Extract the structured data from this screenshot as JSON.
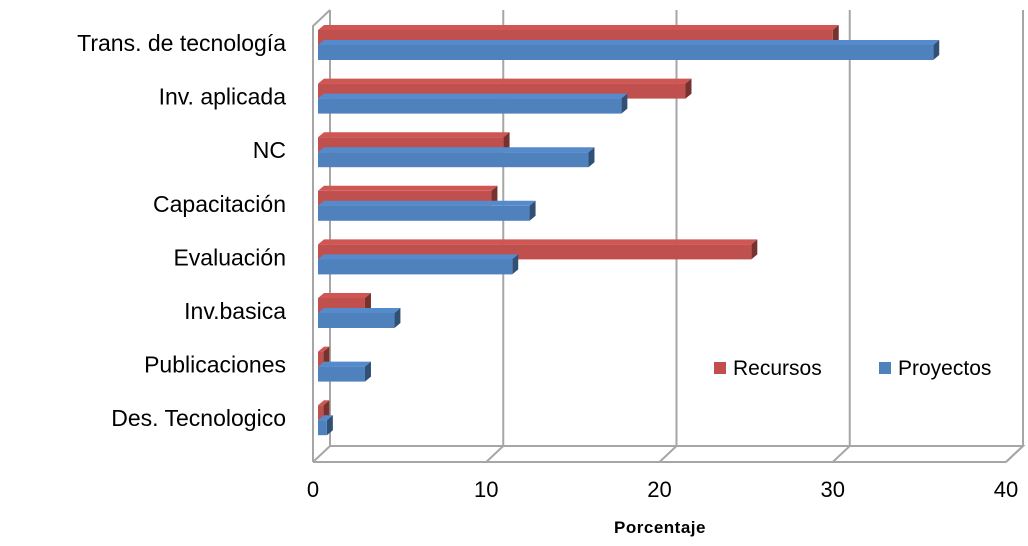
{
  "chart_data": {
    "type": "bar",
    "orientation": "horizontal",
    "style": "3d-clustered",
    "categories": [
      "Trans. de tecnología",
      "Inv. aplicada",
      "NC",
      "Capacitación",
      "Evaluación",
      "Inv.basica",
      "Publicaciones",
      "Des. Tecnologico"
    ],
    "series": [
      {
        "name": "Recursos",
        "color": "#C0504D",
        "values": [
          30,
          21.5,
          11,
          10.3,
          25.3,
          3,
          0.6,
          0.6
        ]
      },
      {
        "name": "Proyectos",
        "color": "#4F81BD",
        "values": [
          35.8,
          17.8,
          15.9,
          12.5,
          11.5,
          4.7,
          3,
          0.8
        ]
      }
    ],
    "xlabel": "Porcentaje",
    "ylabel": "",
    "xlim": [
      0,
      40
    ],
    "xticks": [
      "0",
      "10",
      "20",
      "30",
      "40"
    ],
    "grid": "vertical",
    "legend_position": "right"
  }
}
